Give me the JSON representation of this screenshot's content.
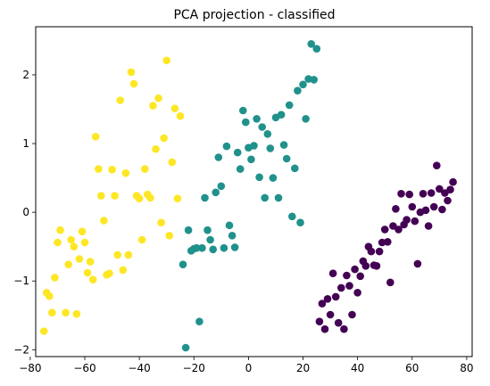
{
  "chart_data": {
    "type": "scatter",
    "title": "PCA projection - classified",
    "xlabel": "",
    "ylabel": "",
    "xlim": [
      -78,
      82
    ],
    "ylim": [
      -2.1,
      2.7
    ],
    "xticks": [
      -80,
      -60,
      -40,
      -20,
      0,
      20,
      40,
      60,
      80
    ],
    "yticks": [
      -2,
      -1,
      0,
      1,
      2
    ],
    "grid": false,
    "series": [
      {
        "color": "#fde725",
        "points": [
          [
            -75,
            -1.73
          ],
          [
            -74,
            -1.17
          ],
          [
            -73,
            -1.22
          ],
          [
            -72,
            -1.46
          ],
          [
            -71,
            -0.95
          ],
          [
            -70,
            -0.44
          ],
          [
            -69,
            -0.26
          ],
          [
            -67,
            -1.46
          ],
          [
            -66,
            -0.76
          ],
          [
            -65,
            -0.4
          ],
          [
            -64,
            -0.5
          ],
          [
            -63,
            -1.48
          ],
          [
            -62,
            -0.68
          ],
          [
            -61,
            -0.28
          ],
          [
            -60,
            -0.44
          ],
          [
            -59,
            -0.88
          ],
          [
            -58,
            -0.72
          ],
          [
            -57,
            -0.98
          ],
          [
            -56,
            1.1
          ],
          [
            -55,
            0.63
          ],
          [
            -54,
            0.24
          ],
          [
            -53,
            -0.12
          ],
          [
            -52,
            -0.91
          ],
          [
            -51,
            -0.89
          ],
          [
            -50,
            0.62
          ],
          [
            -49,
            0.24
          ],
          [
            -48,
            -0.62
          ],
          [
            -47,
            1.63
          ],
          [
            -46,
            -0.84
          ],
          [
            -45,
            0.57
          ],
          [
            -44,
            -0.62
          ],
          [
            -43,
            2.04
          ],
          [
            -42,
            1.87
          ],
          [
            -41,
            0.24
          ],
          [
            -40,
            0.2
          ],
          [
            -39,
            -0.4
          ],
          [
            -38,
            0.63
          ],
          [
            -37,
            0.26
          ],
          [
            -36,
            0.21
          ],
          [
            -35,
            1.55
          ],
          [
            -34,
            0.92
          ],
          [
            -33,
            1.66
          ],
          [
            -32,
            -0.15
          ],
          [
            -31,
            1.08
          ],
          [
            -30,
            2.21
          ],
          [
            -29,
            -0.34
          ],
          [
            -28,
            0.73
          ],
          [
            -27,
            1.51
          ],
          [
            -26,
            0.2
          ],
          [
            -25,
            1.4
          ]
        ]
      },
      {
        "color": "#21918c",
        "points": [
          [
            -24,
            -0.76
          ],
          [
            -23,
            -1.97
          ],
          [
            -22,
            -0.26
          ],
          [
            -21,
            -0.56
          ],
          [
            -20,
            -0.53
          ],
          [
            -19,
            -0.52
          ],
          [
            -18,
            -1.59
          ],
          [
            -17,
            -0.52
          ],
          [
            -16,
            0.21
          ],
          [
            -15,
            -0.26
          ],
          [
            -14,
            -0.4
          ],
          [
            -13,
            -0.54
          ],
          [
            -12,
            0.29
          ],
          [
            -11,
            0.8
          ],
          [
            -10,
            0.38
          ],
          [
            -9,
            -0.52
          ],
          [
            -8,
            0.96
          ],
          [
            -7,
            -0.19
          ],
          [
            -6,
            -0.34
          ],
          [
            -5,
            -0.51
          ],
          [
            -4,
            0.87
          ],
          [
            -3,
            0.63
          ],
          [
            -2,
            1.48
          ],
          [
            -1,
            1.31
          ],
          [
            0,
            0.94
          ],
          [
            1,
            0.77
          ],
          [
            2,
            0.97
          ],
          [
            3,
            1.36
          ],
          [
            4,
            0.51
          ],
          [
            5,
            1.24
          ],
          [
            6,
            0.21
          ],
          [
            7,
            1.14
          ],
          [
            8,
            0.93
          ],
          [
            9,
            0.5
          ],
          [
            10,
            1.38
          ],
          [
            11,
            0.21
          ],
          [
            12,
            1.42
          ],
          [
            13,
            0.98
          ],
          [
            14,
            0.78
          ],
          [
            15,
            1.56
          ],
          [
            16,
            -0.06
          ],
          [
            17,
            0.64
          ],
          [
            18,
            1.77
          ],
          [
            19,
            -0.15
          ],
          [
            20,
            1.86
          ],
          [
            21,
            1.36
          ],
          [
            22,
            1.94
          ],
          [
            23,
            2.45
          ],
          [
            24,
            1.93
          ],
          [
            25,
            2.38
          ]
        ]
      },
      {
        "color": "#440154",
        "points": [
          [
            26,
            -1.59
          ],
          [
            27,
            -1.33
          ],
          [
            28,
            -1.7
          ],
          [
            29,
            -1.26
          ],
          [
            30,
            -1.49
          ],
          [
            31,
            -0.89
          ],
          [
            32,
            -1.23
          ],
          [
            33,
            -1.61
          ],
          [
            34,
            -1.1
          ],
          [
            35,
            -1.7
          ],
          [
            36,
            -0.92
          ],
          [
            37,
            -1.07
          ],
          [
            38,
            -1.49
          ],
          [
            39,
            -0.83
          ],
          [
            40,
            -1.17
          ],
          [
            41,
            -0.93
          ],
          [
            42,
            -0.71
          ],
          [
            43,
            -0.78
          ],
          [
            44,
            -0.5
          ],
          [
            45,
            -0.57
          ],
          [
            46,
            -0.77
          ],
          [
            47,
            -0.78
          ],
          [
            48,
            -0.57
          ],
          [
            49,
            -0.44
          ],
          [
            50,
            -0.25
          ],
          [
            51,
            -0.43
          ],
          [
            52,
            -1.02
          ],
          [
            53,
            -0.2
          ],
          [
            54,
            0.05
          ],
          [
            55,
            -0.25
          ],
          [
            56,
            0.27
          ],
          [
            57,
            -0.18
          ],
          [
            58,
            -0.11
          ],
          [
            59,
            0.26
          ],
          [
            60,
            0.08
          ],
          [
            61,
            -0.13
          ],
          [
            62,
            -0.75
          ],
          [
            63,
            0.0
          ],
          [
            64,
            0.27
          ],
          [
            65,
            0.03
          ],
          [
            66,
            -0.2
          ],
          [
            67,
            0.28
          ],
          [
            68,
            0.08
          ],
          [
            69,
            0.68
          ],
          [
            70,
            0.34
          ],
          [
            71,
            0.04
          ],
          [
            72,
            0.28
          ],
          [
            73,
            0.17
          ],
          [
            74,
            0.33
          ],
          [
            75,
            0.44
          ]
        ]
      }
    ]
  }
}
